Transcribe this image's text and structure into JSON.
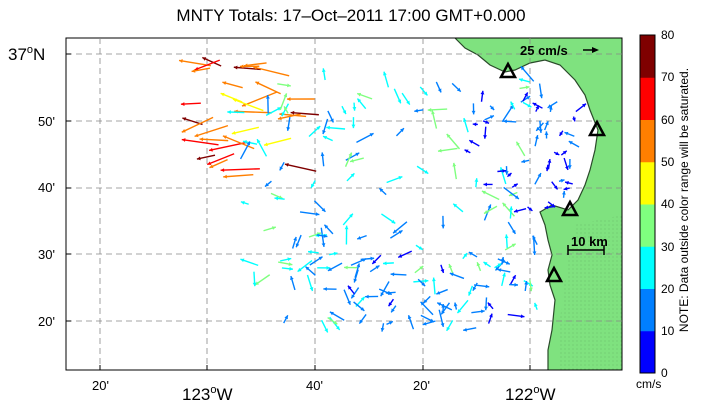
{
  "title": "MNTY Totals: 17–Oct–2011 17:00 GMT+0.000",
  "lat_labels": [
    {
      "deg": "37",
      "deg_sup": "o",
      "suffix": "N"
    },
    {
      "text": "50'"
    },
    {
      "text": "40'"
    },
    {
      "text": "30'"
    },
    {
      "text": "20'"
    }
  ],
  "lon_labels": [
    {
      "text": "20'"
    },
    {
      "deg": "123",
      "deg_sup": "o",
      "suffix": "W"
    },
    {
      "text": "40'"
    },
    {
      "text": "20'"
    },
    {
      "deg": "122",
      "deg_sup": "o",
      "suffix": "W"
    }
  ],
  "scale_arrow_label": "25 cm/s",
  "scale_bar_label": "10 km",
  "colorbar": {
    "ticks": [
      "80",
      "70",
      "60",
      "50",
      "40",
      "30",
      "20",
      "10",
      "0"
    ],
    "unit": "cm/s",
    "colors": [
      "#0000ff",
      "#007fff",
      "#00ffff",
      "#7fff7f",
      "#ffff00",
      "#ff7f00",
      "#ff0000",
      "#7f0000"
    ]
  },
  "note": "NOTE: Data outside color range will be saturated.",
  "colors": {
    "land": "#7fe27f",
    "coast": "#2a4a2a"
  },
  "station_count": 4
}
